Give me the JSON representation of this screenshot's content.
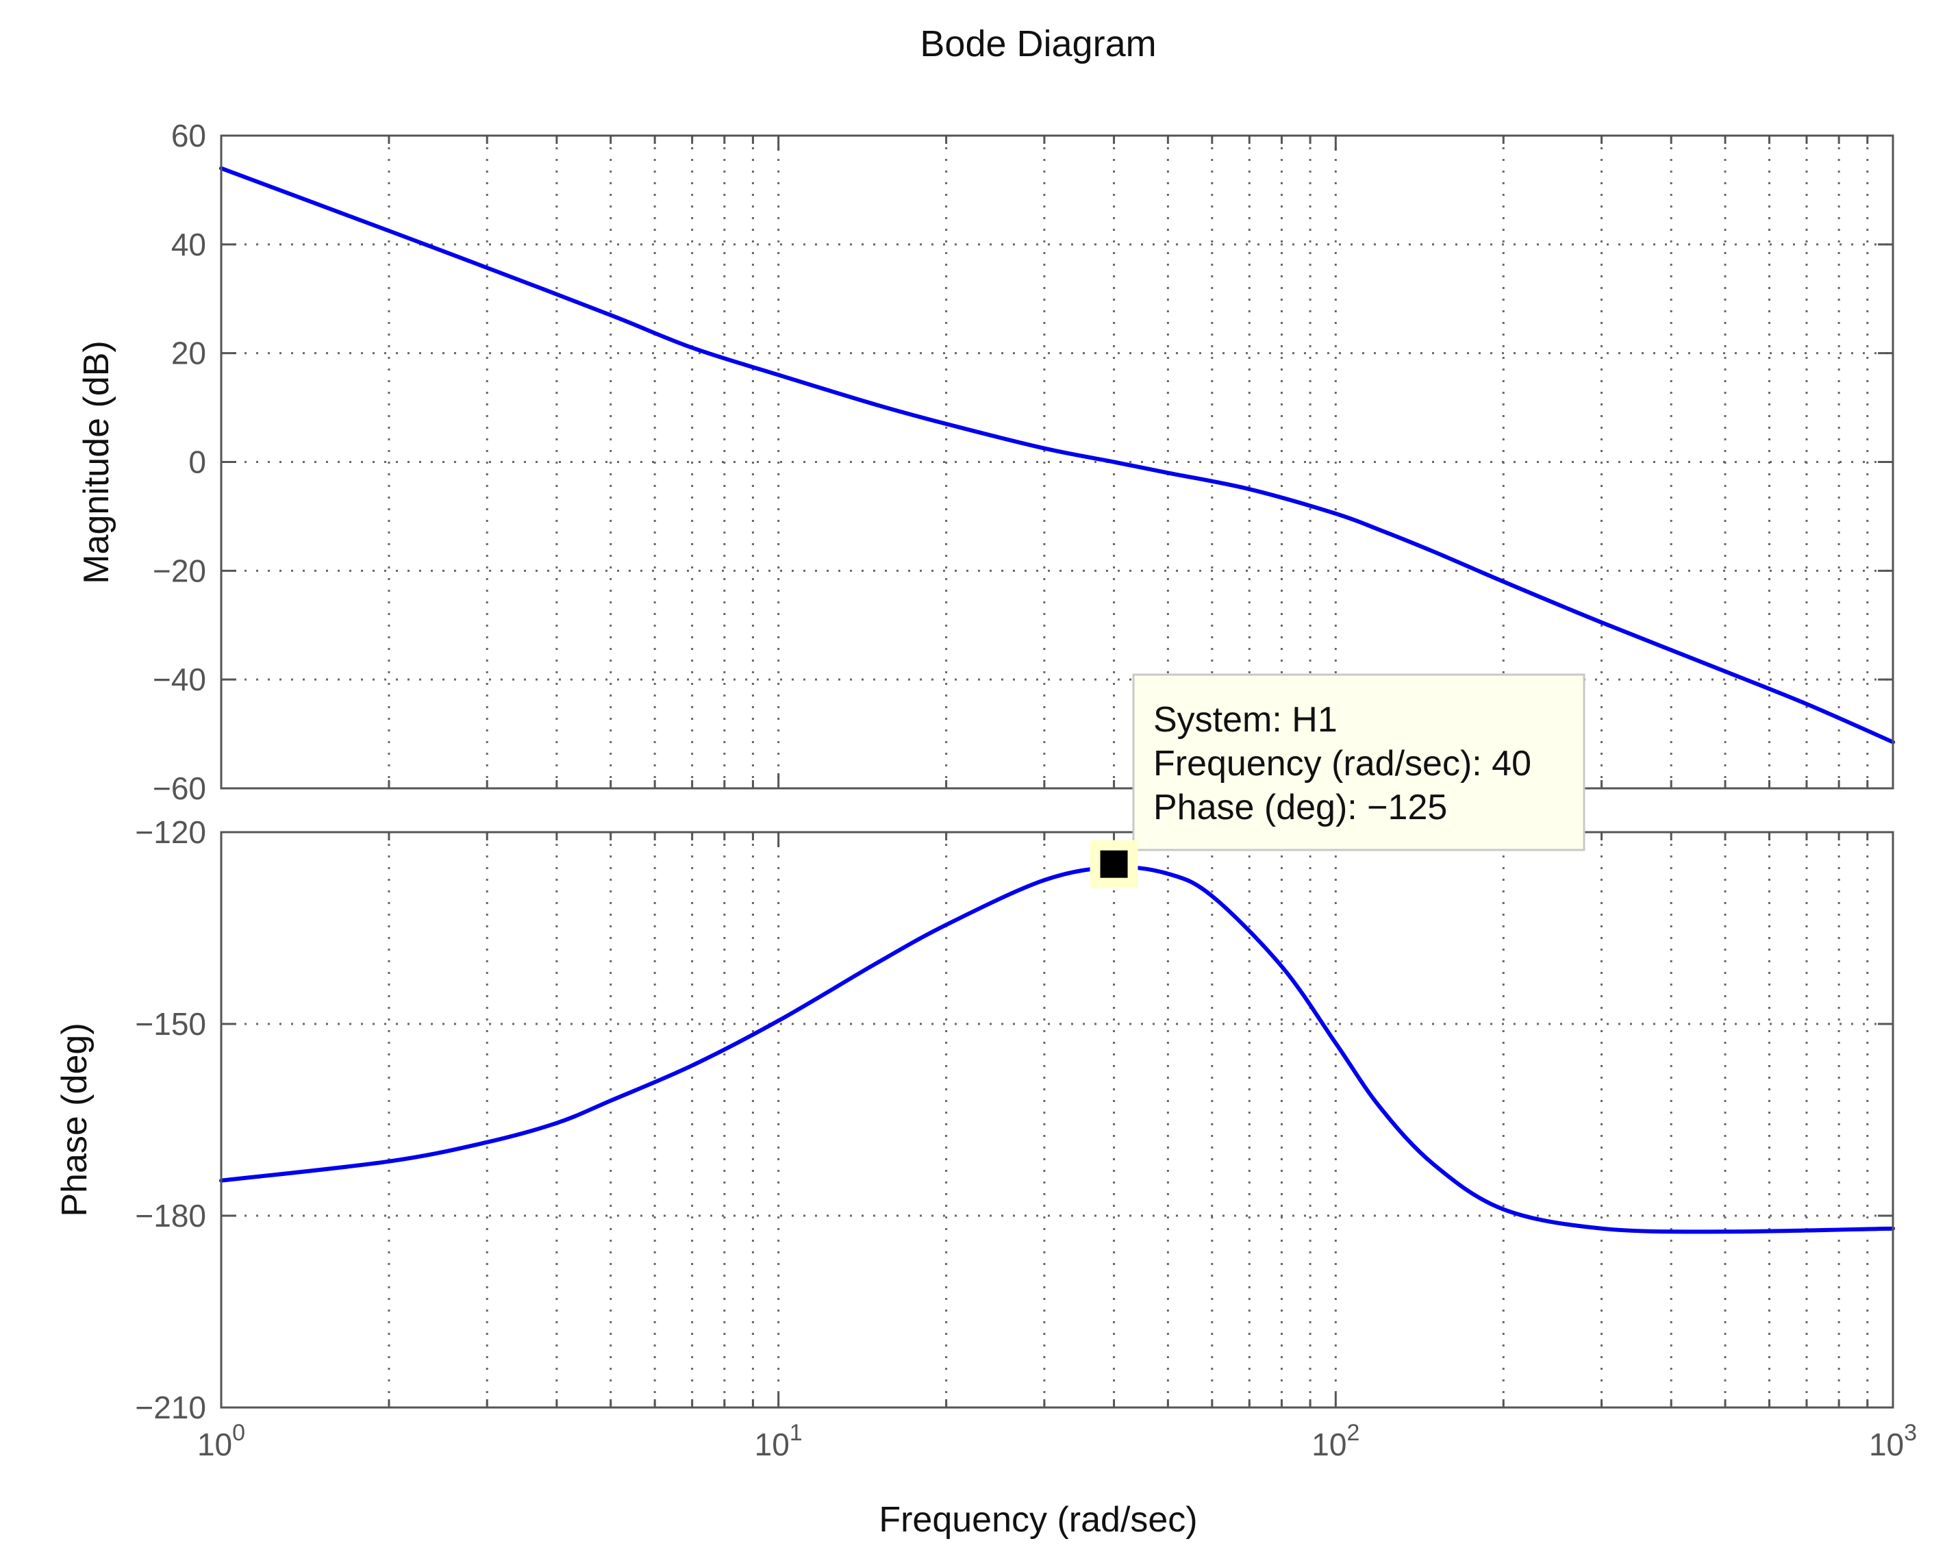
{
  "chart_data": {
    "type": "line",
    "title": "Bode Diagram",
    "xlabel": "Frequency  (rad/sec)",
    "xscale": "log",
    "xlim": [
      1,
      1000
    ],
    "x_tick_labels": [
      {
        "value": 1,
        "base": "10",
        "exp": "0"
      },
      {
        "value": 10,
        "base": "10",
        "exp": "1"
      },
      {
        "value": 100,
        "base": "10",
        "exp": "2"
      },
      {
        "value": 1000,
        "base": "10",
        "exp": "3"
      }
    ],
    "grid": true,
    "colors": {
      "series": "#0000ee",
      "axes": "#555555",
      "tip_bg": "#ffffee",
      "tip_border": "#c8c8c8"
    },
    "magnitude": {
      "ylabel": "Magnitude (dB)",
      "ylim": [
        -60,
        60
      ],
      "yticks": [
        60,
        40,
        20,
        0,
        -20,
        -40,
        -60
      ],
      "ytick_labels": [
        "60",
        "40",
        "20",
        "0",
        "−20",
        "−40",
        "−60"
      ],
      "points": [
        [
          1,
          54
        ],
        [
          2,
          42.5
        ],
        [
          3,
          35.7
        ],
        [
          5,
          27
        ],
        [
          7,
          21
        ],
        [
          10,
          16
        ],
        [
          15,
          10.5
        ],
        [
          20,
          7
        ],
        [
          30,
          2.5
        ],
        [
          40,
          0
        ],
        [
          50,
          -2
        ],
        [
          70,
          -5
        ],
        [
          100,
          -9.5
        ],
        [
          120,
          -12.5
        ],
        [
          150,
          -16.5
        ],
        [
          200,
          -22
        ],
        [
          300,
          -29.5
        ],
        [
          500,
          -38.5
        ],
        [
          700,
          -44.5
        ],
        [
          1000,
          -51.5
        ]
      ]
    },
    "phase": {
      "ylabel": "Phase (deg)",
      "ylim": [
        -210,
        -120
      ],
      "yticks": [
        -120,
        -150,
        -180,
        -210
      ],
      "ytick_labels": [
        "−120",
        "−150",
        "−180",
        "−210"
      ],
      "points": [
        [
          1,
          -174.5
        ],
        [
          2,
          -171.5
        ],
        [
          3,
          -168.5
        ],
        [
          4,
          -165.5
        ],
        [
          5,
          -162
        ],
        [
          7,
          -156.5
        ],
        [
          10,
          -149.5
        ],
        [
          15,
          -140.5
        ],
        [
          20,
          -134.5
        ],
        [
          30,
          -127.5
        ],
        [
          40,
          -125.5
        ],
        [
          50,
          -126.5
        ],
        [
          60,
          -130
        ],
        [
          80,
          -141
        ],
        [
          100,
          -153
        ],
        [
          120,
          -163
        ],
        [
          150,
          -172
        ],
        [
          200,
          -179
        ],
        [
          300,
          -182
        ],
        [
          500,
          -182.5
        ],
        [
          1000,
          -182
        ]
      ]
    },
    "datatip": {
      "series": "System: H1",
      "frequency": "Frequency (rad/sec): 40",
      "phase": "Phase (deg): −125",
      "x": 40,
      "y": -125
    }
  }
}
